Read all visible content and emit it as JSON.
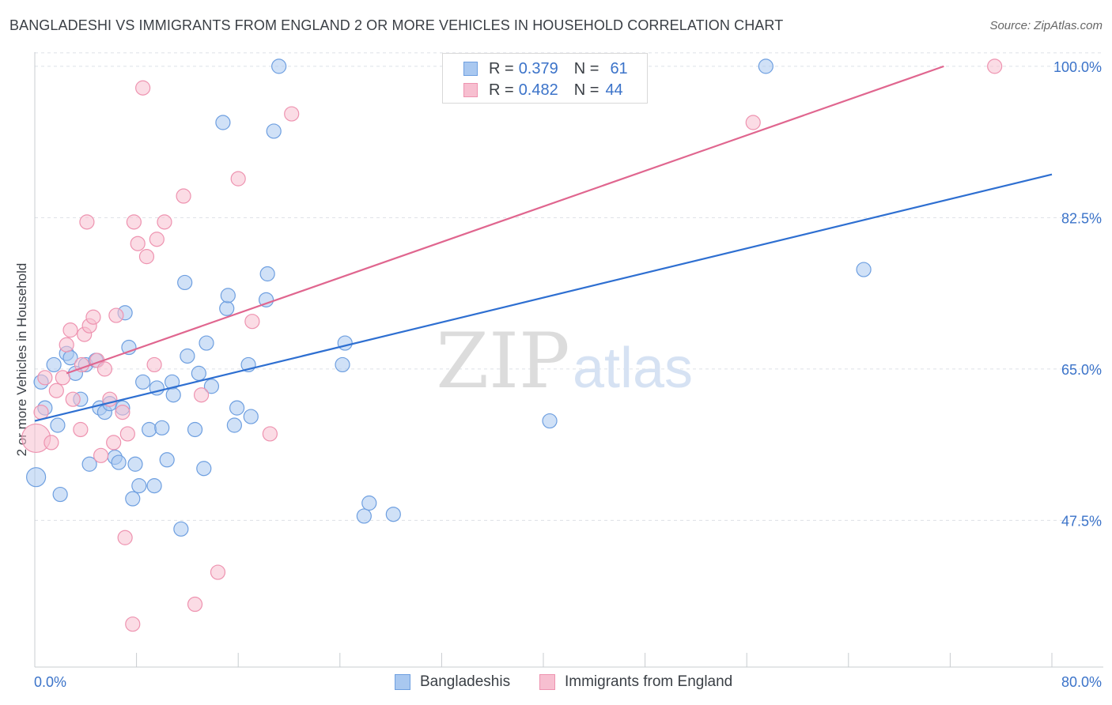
{
  "header": {
    "title": "BANGLADESHI VS IMMIGRANTS FROM ENGLAND 2 OR MORE VEHICLES IN HOUSEHOLD CORRELATION CHART",
    "source": "Source: ZipAtlas.com"
  },
  "watermark": {
    "zip": "ZIP",
    "atlas": "atlas"
  },
  "legend": {
    "series1": {
      "r_label": "R =",
      "r_value": "0.379",
      "n_label": "N =",
      "n_value": "61"
    },
    "series2": {
      "r_label": "R =",
      "r_value": "0.482",
      "n_label": "N =",
      "n_value": "44"
    }
  },
  "bottom_legend": {
    "series1": "Bangladeshis",
    "series2": "Immigrants from England"
  },
  "colors": {
    "series1_fill": "#a9c8f0",
    "series1_stroke": "#6e9fe0",
    "series1_line": "#2e6fd1",
    "series2_fill": "#f7bfd0",
    "series2_stroke": "#ee93b0",
    "series2_line": "#e0668f",
    "tick": "#3b73c9",
    "grid": "#dde1e6"
  },
  "chart_data": {
    "type": "scatter",
    "xlabel": "",
    "ylabel": "2 or more Vehicles in Household",
    "xlim": [
      0,
      80
    ],
    "ylim": [
      32,
      102
    ],
    "x_tick_labels": [
      "0.0%",
      "80.0%"
    ],
    "y_ticks": [
      47.5,
      65.0,
      82.5,
      100.0
    ],
    "y_tick_labels": [
      "47.5%",
      "65.0%",
      "82.5%",
      "100.0%"
    ],
    "grid": true,
    "legend_position": "top-center",
    "series": [
      {
        "name": "Bangladeshis",
        "trend": [
          [
            0,
            59.0
          ],
          [
            80,
            87.5
          ]
        ],
        "points": [
          [
            0.1,
            52.5,
            12
          ],
          [
            0.5,
            63.5,
            9
          ],
          [
            0.8,
            60.5,
            9
          ],
          [
            1.5,
            65.5,
            9
          ],
          [
            1.8,
            58.5,
            9
          ],
          [
            2.0,
            50.5,
            9
          ],
          [
            2.5,
            66.8,
            9
          ],
          [
            2.8,
            66.3,
            9
          ],
          [
            3.2,
            64.5,
            9
          ],
          [
            3.6,
            61.5,
            9
          ],
          [
            4.0,
            65.5,
            9
          ],
          [
            4.3,
            54.0,
            9
          ],
          [
            4.8,
            66.0,
            9
          ],
          [
            5.1,
            60.5,
            9
          ],
          [
            5.5,
            60.0,
            9
          ],
          [
            5.9,
            61.0,
            9
          ],
          [
            6.3,
            54.8,
            9
          ],
          [
            6.6,
            54.2,
            9
          ],
          [
            6.9,
            60.5,
            9
          ],
          [
            7.1,
            71.5,
            9
          ],
          [
            7.4,
            67.5,
            9
          ],
          [
            7.7,
            50.0,
            9
          ],
          [
            7.9,
            54.0,
            9
          ],
          [
            8.2,
            51.5,
            9
          ],
          [
            8.5,
            63.5,
            9
          ],
          [
            9.0,
            58.0,
            9
          ],
          [
            9.4,
            51.5,
            9
          ],
          [
            9.6,
            62.8,
            9
          ],
          [
            10.0,
            58.2,
            9
          ],
          [
            10.4,
            54.5,
            9
          ],
          [
            10.8,
            63.5,
            9
          ],
          [
            10.9,
            62.0,
            9
          ],
          [
            11.5,
            46.5,
            9
          ],
          [
            11.8,
            75.0,
            9
          ],
          [
            12.0,
            66.5,
            9
          ],
          [
            12.6,
            58.0,
            9
          ],
          [
            12.9,
            64.5,
            9
          ],
          [
            13.3,
            53.5,
            9
          ],
          [
            13.5,
            68.0,
            9
          ],
          [
            13.9,
            63.0,
            9
          ],
          [
            14.8,
            93.5,
            9
          ],
          [
            15.1,
            72.0,
            9
          ],
          [
            15.2,
            73.5,
            9
          ],
          [
            15.7,
            58.5,
            9
          ],
          [
            15.9,
            60.5,
            9
          ],
          [
            16.8,
            65.5,
            9
          ],
          [
            17.0,
            59.5,
            9
          ],
          [
            18.2,
            73.0,
            9
          ],
          [
            18.3,
            76.0,
            9
          ],
          [
            18.8,
            92.5,
            9
          ],
          [
            19.2,
            100.0,
            9
          ],
          [
            24.4,
            68.0,
            9
          ],
          [
            24.2,
            65.5,
            9
          ],
          [
            25.9,
            48.0,
            9
          ],
          [
            26.3,
            49.5,
            9
          ],
          [
            28.2,
            48.2,
            9
          ],
          [
            40.5,
            59.0,
            9
          ],
          [
            57.5,
            100.0,
            9
          ],
          [
            65.2,
            76.5,
            9
          ]
        ]
      },
      {
        "name": "Immigrants from England",
        "trend": [
          [
            2.5,
            64.5
          ],
          [
            71.5,
            100.0
          ]
        ],
        "points": [
          [
            0.1,
            57.0,
            18
          ],
          [
            0.5,
            60.0,
            9
          ],
          [
            0.8,
            64.0,
            9
          ],
          [
            1.3,
            56.5,
            9
          ],
          [
            1.7,
            62.5,
            9
          ],
          [
            2.2,
            64.0,
            9
          ],
          [
            2.5,
            67.8,
            9
          ],
          [
            2.8,
            69.5,
            9
          ],
          [
            3.0,
            61.5,
            9
          ],
          [
            3.6,
            58.0,
            9
          ],
          [
            3.7,
            65.5,
            9
          ],
          [
            3.9,
            69.0,
            9
          ],
          [
            4.1,
            82.0,
            9
          ],
          [
            4.3,
            70.0,
            9
          ],
          [
            4.6,
            71.0,
            9
          ],
          [
            4.9,
            66.0,
            9
          ],
          [
            5.2,
            55.0,
            9
          ],
          [
            5.5,
            65.0,
            9
          ],
          [
            5.9,
            61.5,
            9
          ],
          [
            6.2,
            56.5,
            9
          ],
          [
            6.4,
            71.2,
            9
          ],
          [
            6.9,
            60.0,
            9
          ],
          [
            7.1,
            45.5,
            9
          ],
          [
            7.3,
            57.5,
            9
          ],
          [
            7.7,
            35.5,
            9
          ],
          [
            7.8,
            82.0,
            9
          ],
          [
            8.1,
            79.5,
            9
          ],
          [
            8.5,
            97.5,
            9
          ],
          [
            8.8,
            78.0,
            9
          ],
          [
            9.4,
            65.5,
            9
          ],
          [
            9.6,
            80.0,
            9
          ],
          [
            10.2,
            82.0,
            9
          ],
          [
            11.7,
            85.0,
            9
          ],
          [
            12.6,
            37.8,
            9
          ],
          [
            13.1,
            62.0,
            9
          ],
          [
            14.4,
            41.5,
            9
          ],
          [
            16.0,
            87.0,
            9
          ],
          [
            17.1,
            70.5,
            9
          ],
          [
            18.5,
            57.5,
            9
          ],
          [
            20.2,
            94.5,
            9
          ],
          [
            56.5,
            93.5,
            9
          ],
          [
            75.5,
            100.0,
            9
          ]
        ]
      }
    ]
  }
}
